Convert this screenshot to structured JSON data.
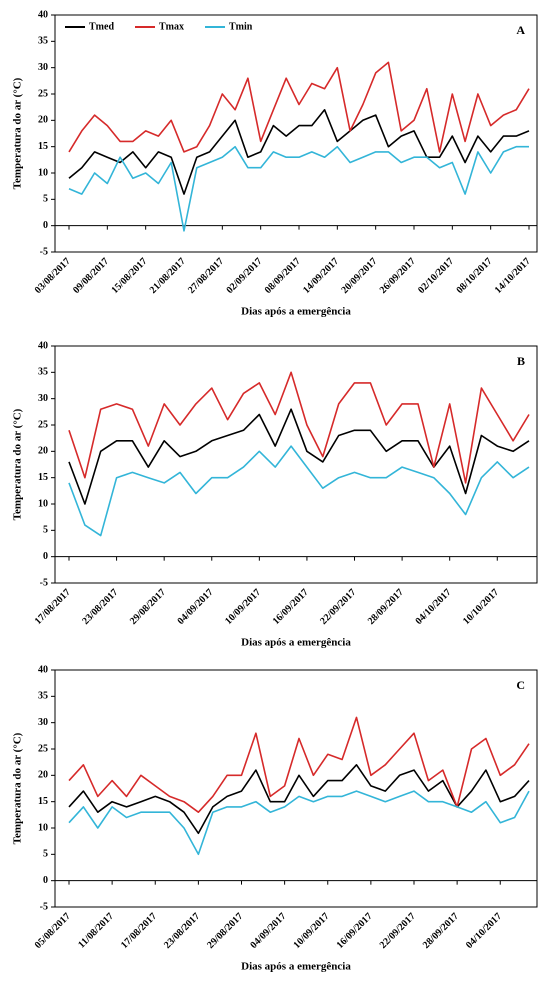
{
  "chart_data": [
    {
      "type": "line",
      "label": "A",
      "x_label": "Dias após a emergência",
      "y_label": "Temperatura do ar (°C)",
      "categories": [
        "03/08/2017",
        null,
        null,
        "09/08/2017",
        null,
        null,
        "15/08/2017",
        null,
        null,
        "21/08/2017",
        null,
        null,
        "27/08/2017",
        null,
        null,
        "02/09/2017",
        null,
        null,
        "08/09/2017",
        null,
        null,
        "14/09/2017",
        null,
        null,
        "20/09/2017",
        null,
        null,
        "26/09/2017",
        null,
        null,
        "02/10/2017",
        null,
        null,
        "08/10/2017",
        null,
        null,
        "14/10/2017"
      ],
      "series": [
        {
          "name": "Tmed",
          "color": "#000000",
          "values": [
            9,
            11,
            14,
            13,
            12,
            14,
            11,
            14,
            13,
            6,
            13,
            14,
            17,
            20,
            13,
            14,
            19,
            17,
            19,
            19,
            22,
            16,
            18,
            20,
            21,
            15,
            17,
            18,
            13,
            13,
            17,
            12,
            17,
            14,
            17,
            17,
            18
          ]
        },
        {
          "name": "Tmax",
          "color": "#d62a2a",
          "values": [
            14,
            18,
            21,
            19,
            16,
            16,
            18,
            17,
            20,
            14,
            15,
            19,
            25,
            22,
            28,
            16,
            22,
            28,
            23,
            27,
            26,
            30,
            18,
            23,
            29,
            31,
            18,
            20,
            26,
            14,
            25,
            16,
            25,
            19,
            21,
            22,
            26
          ]
        },
        {
          "name": "Tmin",
          "color": "#33b5d8",
          "values": [
            7,
            6,
            10,
            8,
            13,
            9,
            10,
            8,
            12,
            -1,
            11,
            12,
            13,
            15,
            11,
            11,
            14,
            13,
            13,
            14,
            13,
            15,
            12,
            13,
            14,
            14,
            12,
            13,
            13,
            11,
            12,
            6,
            14,
            10,
            14,
            15,
            15
          ]
        }
      ],
      "ylim": [
        -5,
        40
      ],
      "yticks": [
        -5,
        0,
        5,
        10,
        15,
        20,
        25,
        30,
        35,
        40
      ],
      "legend": "top-left"
    },
    {
      "type": "line",
      "label": "B",
      "x_label": "Dias após a emergência",
      "y_label": "Temperatura do  ar (°C)",
      "categories": [
        "17/08/2017",
        null,
        null,
        "23/08/2017",
        null,
        null,
        "29/08/2017",
        null,
        null,
        "04/09/2017",
        null,
        null,
        "10/09/2017",
        null,
        null,
        "16/09/2017",
        null,
        null,
        "22/09/2017",
        null,
        null,
        "28/09/2017",
        null,
        null,
        "04/10/2017",
        null,
        null,
        "10/10/2017",
        null,
        null
      ],
      "series": [
        {
          "color": "#000000",
          "values": [
            18,
            10,
            20,
            22,
            22,
            17,
            22,
            19,
            20,
            22,
            23,
            24,
            27,
            21,
            28,
            20,
            18,
            23,
            24,
            24,
            20,
            22,
            22,
            17,
            21,
            12,
            23,
            21,
            20,
            22
          ]
        },
        {
          "color": "#d62a2a",
          "values": [
            24,
            15,
            28,
            29,
            28,
            21,
            29,
            25,
            29,
            32,
            26,
            31,
            33,
            27,
            35,
            25,
            19,
            29,
            33,
            33,
            25,
            29,
            29,
            17,
            29,
            14,
            32,
            27,
            22,
            27
          ]
        },
        {
          "color": "#33b5d8",
          "values": [
            14,
            6,
            4,
            15,
            16,
            15,
            14,
            16,
            12,
            15,
            15,
            17,
            20,
            17,
            21,
            17,
            13,
            15,
            16,
            15,
            15,
            17,
            16,
            15,
            12,
            8,
            15,
            18,
            15,
            17
          ]
        }
      ],
      "ylim": [
        -5,
        40
      ],
      "yticks": [
        -5,
        0,
        5,
        10,
        15,
        20,
        25,
        30,
        35,
        40
      ]
    },
    {
      "type": "line",
      "label": "C",
      "x_label": "Dias após a emergência",
      "y_label": "Temperatura do  ar (°C)",
      "categories": [
        "05/08/2017",
        null,
        null,
        "11/08/2017",
        null,
        null,
        "17/08/2017",
        null,
        null,
        "23/08/2017",
        null,
        null,
        "29/08/2017",
        null,
        null,
        "04/09/2017",
        null,
        null,
        "10/09/2017",
        null,
        null,
        "16/09/2017",
        null,
        null,
        "22/09/2017",
        null,
        null,
        "28/09/2017",
        null,
        null,
        "04/10/2017",
        null,
        null
      ],
      "series": [
        {
          "color": "#000000",
          "values": [
            14,
            17,
            13,
            15,
            14,
            15,
            16,
            15,
            13,
            9,
            14,
            16,
            17,
            21,
            15,
            15,
            20,
            16,
            19,
            19,
            22,
            18,
            17,
            20,
            21,
            17,
            19,
            14,
            17,
            21,
            15,
            16,
            19
          ]
        },
        {
          "color": "#d62a2a",
          "values": [
            19,
            22,
            16,
            19,
            16,
            20,
            18,
            16,
            15,
            13,
            16,
            20,
            20,
            28,
            16,
            18,
            27,
            20,
            24,
            23,
            31,
            20,
            22,
            25,
            28,
            19,
            21,
            14,
            25,
            27,
            20,
            22,
            26
          ]
        },
        {
          "color": "#33b5d8",
          "values": [
            11,
            14,
            10,
            14,
            12,
            13,
            13,
            13,
            10,
            5,
            13,
            14,
            14,
            15,
            13,
            14,
            16,
            15,
            16,
            16,
            17,
            16,
            15,
            16,
            17,
            15,
            15,
            14,
            13,
            15,
            11,
            12,
            17
          ]
        }
      ],
      "ylim": [
        -5,
        40
      ],
      "yticks": [
        -5,
        0,
        5,
        10,
        15,
        20,
        25,
        30,
        35,
        40
      ]
    }
  ]
}
